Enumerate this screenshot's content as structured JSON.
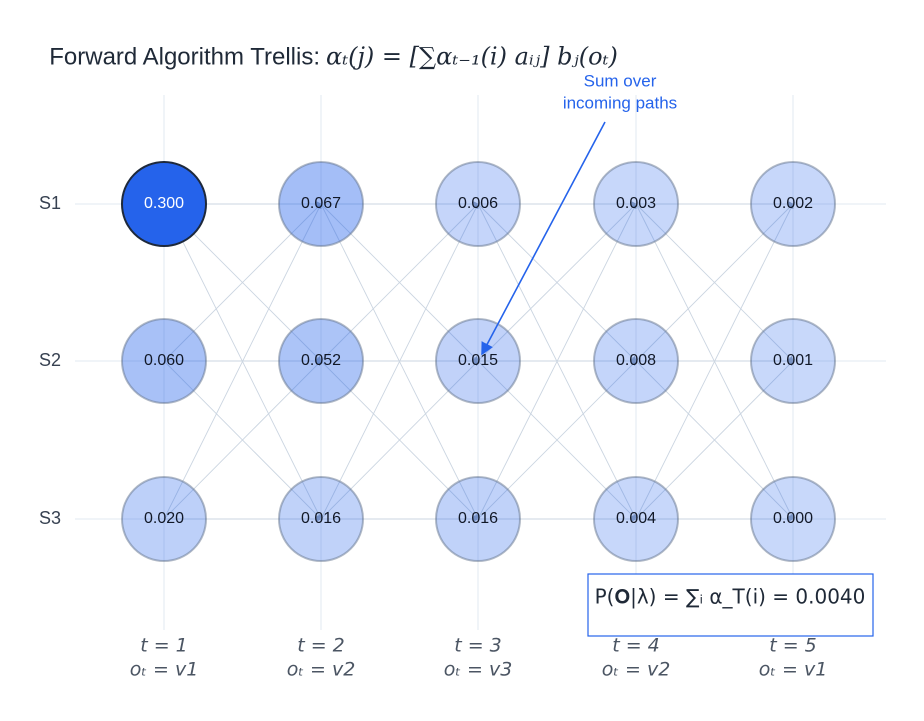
{
  "title": {
    "text": "Forward Algorithm Trellis:",
    "formula": "αₜ(j) = [∑αₜ₋₁(i) aᵢⱼ] bⱼ(oₜ)"
  },
  "states": [
    "S1",
    "S2",
    "S3"
  ],
  "time_steps": [
    {
      "t": "t = 1",
      "obs": "oₜ = v1"
    },
    {
      "t": "t = 2",
      "obs": "oₜ = v2"
    },
    {
      "t": "t = 3",
      "obs": "oₜ = v3"
    },
    {
      "t": "t = 4",
      "obs": "oₜ = v2"
    },
    {
      "t": "t = 5",
      "obs": "oₜ = v1"
    }
  ],
  "nodes": [
    [
      "0.300",
      "0.060",
      "0.020"
    ],
    [
      "0.067",
      "0.052",
      "0.016"
    ],
    [
      "0.006",
      "0.015",
      "0.016"
    ],
    [
      "0.003",
      "0.008",
      "0.004"
    ],
    [
      "0.002",
      "0.001",
      "0.000"
    ]
  ],
  "annotation": [
    "Sum over",
    "incoming paths"
  ],
  "result": "P(𝐎|λ) = ∑ᵢ α_T(i) = 0.0040"
}
